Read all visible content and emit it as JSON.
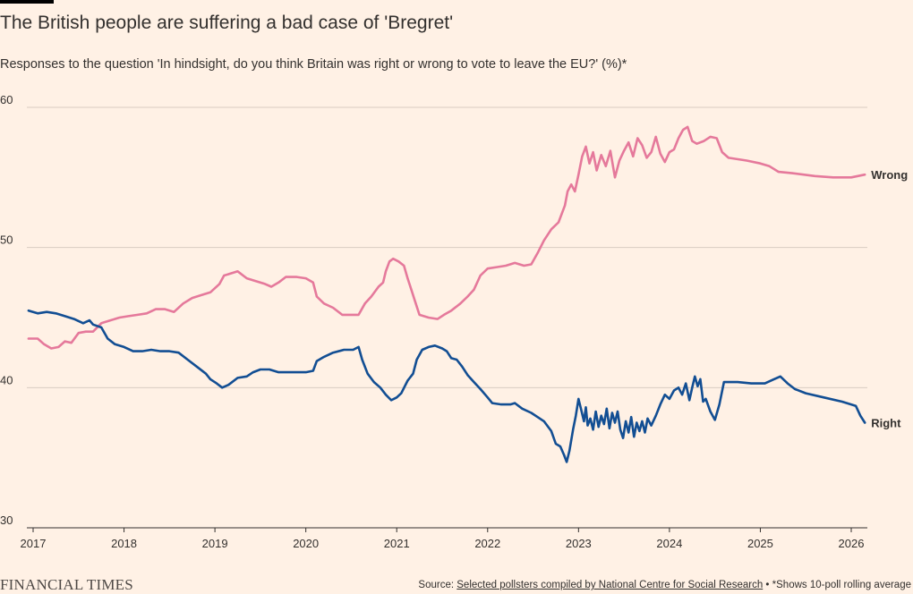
{
  "title": "The British people are suffering a bad case of 'Bregret'",
  "subtitle": "Responses to the question 'In hindsight, do you think Britain was right or wrong to vote to leave the EU?' (%)*",
  "footer": {
    "logo": "FINANCIAL TIMES",
    "source_prefix": "Source: ",
    "source_link": "Selected pollsters compiled by National Centre for Social Research",
    "source_suffix": " • *Shows 10-poll rolling average"
  },
  "colors": {
    "wrong": "#e5799b",
    "right": "#124e93",
    "grid": "#d9ccc1",
    "axis": "#33302e",
    "background": "#fff1e5"
  },
  "chart_data": {
    "type": "line",
    "title": "The British people are suffering a bad case of 'Bregret'",
    "subtitle": "Responses to the question 'In hindsight, do you think Britain was right or wrong to vote to leave the EU?' (%)*",
    "x_ticks": [
      "2017",
      "2018",
      "2019",
      "2020",
      "2021",
      "2022",
      "2023",
      "2024",
      "2025",
      "2026"
    ],
    "y_ticks": [
      "30",
      "40",
      "50",
      "60"
    ],
    "xlim": [
      2016.95,
      2026.15
    ],
    "ylim": [
      30,
      60
    ],
    "grid": true,
    "series": [
      {
        "name": "Wrong",
        "color": "#e5799b",
        "points": [
          [
            2016.95,
            43.5
          ],
          [
            2017.05,
            43.5
          ],
          [
            2017.12,
            43.1
          ],
          [
            2017.2,
            42.8
          ],
          [
            2017.28,
            42.9
          ],
          [
            2017.35,
            43.3
          ],
          [
            2017.42,
            43.2
          ],
          [
            2017.5,
            43.9
          ],
          [
            2017.58,
            44.0
          ],
          [
            2017.66,
            44.0
          ],
          [
            2017.75,
            44.6
          ],
          [
            2017.85,
            44.8
          ],
          [
            2017.95,
            45.0
          ],
          [
            2018.05,
            45.1
          ],
          [
            2018.15,
            45.2
          ],
          [
            2018.25,
            45.3
          ],
          [
            2018.35,
            45.6
          ],
          [
            2018.45,
            45.6
          ],
          [
            2018.55,
            45.4
          ],
          [
            2018.65,
            46.0
          ],
          [
            2018.75,
            46.4
          ],
          [
            2018.85,
            46.6
          ],
          [
            2018.95,
            46.8
          ],
          [
            2019.05,
            47.4
          ],
          [
            2019.1,
            48.0
          ],
          [
            2019.2,
            48.2
          ],
          [
            2019.25,
            48.3
          ],
          [
            2019.35,
            47.8
          ],
          [
            2019.45,
            47.6
          ],
          [
            2019.55,
            47.4
          ],
          [
            2019.62,
            47.2
          ],
          [
            2019.7,
            47.5
          ],
          [
            2019.78,
            47.9
          ],
          [
            2019.9,
            47.9
          ],
          [
            2020.0,
            47.8
          ],
          [
            2020.08,
            47.5
          ],
          [
            2020.12,
            46.5
          ],
          [
            2020.2,
            46.0
          ],
          [
            2020.3,
            45.7
          ],
          [
            2020.4,
            45.2
          ],
          [
            2020.5,
            45.2
          ],
          [
            2020.58,
            45.2
          ],
          [
            2020.65,
            46.0
          ],
          [
            2020.72,
            46.5
          ],
          [
            2020.8,
            47.2
          ],
          [
            2020.85,
            47.5
          ],
          [
            2020.88,
            48.3
          ],
          [
            2020.92,
            49.0
          ],
          [
            2020.96,
            49.2
          ],
          [
            2021.02,
            49.0
          ],
          [
            2021.08,
            48.7
          ],
          [
            2021.12,
            47.8
          ],
          [
            2021.16,
            47.0
          ],
          [
            2021.2,
            46.2
          ],
          [
            2021.25,
            45.2
          ],
          [
            2021.35,
            45.0
          ],
          [
            2021.45,
            44.9
          ],
          [
            2021.52,
            45.2
          ],
          [
            2021.6,
            45.5
          ],
          [
            2021.7,
            46.0
          ],
          [
            2021.78,
            46.5
          ],
          [
            2021.85,
            47.0
          ],
          [
            2021.92,
            48.0
          ],
          [
            2022.0,
            48.5
          ],
          [
            2022.1,
            48.6
          ],
          [
            2022.2,
            48.7
          ],
          [
            2022.3,
            48.9
          ],
          [
            2022.4,
            48.7
          ],
          [
            2022.48,
            48.8
          ],
          [
            2022.55,
            49.6
          ],
          [
            2022.62,
            50.5
          ],
          [
            2022.7,
            51.3
          ],
          [
            2022.78,
            51.8
          ],
          [
            2022.85,
            53.0
          ],
          [
            2022.88,
            54.0
          ],
          [
            2022.92,
            54.5
          ],
          [
            2022.96,
            54.0
          ],
          [
            2023.0,
            55.2
          ],
          [
            2023.04,
            56.5
          ],
          [
            2023.08,
            57.2
          ],
          [
            2023.12,
            56.0
          ],
          [
            2023.16,
            56.8
          ],
          [
            2023.2,
            55.5
          ],
          [
            2023.25,
            56.6
          ],
          [
            2023.3,
            55.8
          ],
          [
            2023.35,
            56.9
          ],
          [
            2023.4,
            55.0
          ],
          [
            2023.45,
            56.2
          ],
          [
            2023.5,
            56.9
          ],
          [
            2023.55,
            57.5
          ],
          [
            2023.6,
            56.5
          ],
          [
            2023.65,
            57.8
          ],
          [
            2023.7,
            57.3
          ],
          [
            2023.75,
            56.4
          ],
          [
            2023.8,
            56.8
          ],
          [
            2023.85,
            57.9
          ],
          [
            2023.9,
            56.7
          ],
          [
            2023.95,
            56.1
          ],
          [
            2024.0,
            56.8
          ],
          [
            2024.05,
            57.0
          ],
          [
            2024.1,
            57.8
          ],
          [
            2024.15,
            58.4
          ],
          [
            2024.2,
            58.6
          ],
          [
            2024.25,
            57.6
          ],
          [
            2024.3,
            57.4
          ],
          [
            2024.38,
            57.6
          ],
          [
            2024.45,
            57.9
          ],
          [
            2024.52,
            57.8
          ],
          [
            2024.58,
            56.8
          ],
          [
            2024.65,
            56.4
          ],
          [
            2024.85,
            56.2
          ],
          [
            2025.0,
            56.0
          ],
          [
            2025.1,
            55.8
          ],
          [
            2025.2,
            55.4
          ],
          [
            2025.35,
            55.3
          ],
          [
            2025.6,
            55.1
          ],
          [
            2025.8,
            55.0
          ],
          [
            2026.0,
            55.0
          ],
          [
            2026.15,
            55.2
          ]
        ]
      },
      {
        "name": "Right",
        "color": "#124e93",
        "points": [
          [
            2016.95,
            45.5
          ],
          [
            2017.05,
            45.3
          ],
          [
            2017.15,
            45.4
          ],
          [
            2017.25,
            45.3
          ],
          [
            2017.35,
            45.1
          ],
          [
            2017.45,
            44.9
          ],
          [
            2017.55,
            44.6
          ],
          [
            2017.62,
            44.8
          ],
          [
            2017.66,
            44.5
          ],
          [
            2017.75,
            44.3
          ],
          [
            2017.82,
            43.5
          ],
          [
            2017.9,
            43.1
          ],
          [
            2018.0,
            42.9
          ],
          [
            2018.1,
            42.6
          ],
          [
            2018.2,
            42.6
          ],
          [
            2018.3,
            42.7
          ],
          [
            2018.4,
            42.6
          ],
          [
            2018.5,
            42.6
          ],
          [
            2018.6,
            42.5
          ],
          [
            2018.7,
            42.0
          ],
          [
            2018.8,
            41.5
          ],
          [
            2018.9,
            41.0
          ],
          [
            2018.95,
            40.6
          ],
          [
            2019.02,
            40.3
          ],
          [
            2019.08,
            40.0
          ],
          [
            2019.15,
            40.2
          ],
          [
            2019.25,
            40.7
          ],
          [
            2019.35,
            40.8
          ],
          [
            2019.42,
            41.1
          ],
          [
            2019.5,
            41.3
          ],
          [
            2019.6,
            41.3
          ],
          [
            2019.7,
            41.1
          ],
          [
            2019.8,
            41.1
          ],
          [
            2020.0,
            41.1
          ],
          [
            2020.08,
            41.2
          ],
          [
            2020.12,
            41.9
          ],
          [
            2020.2,
            42.2
          ],
          [
            2020.3,
            42.5
          ],
          [
            2020.42,
            42.7
          ],
          [
            2020.52,
            42.7
          ],
          [
            2020.58,
            42.9
          ],
          [
            2020.62,
            42.0
          ],
          [
            2020.68,
            41.0
          ],
          [
            2020.75,
            40.4
          ],
          [
            2020.82,
            40.0
          ],
          [
            2020.88,
            39.5
          ],
          [
            2020.94,
            39.1
          ],
          [
            2021.0,
            39.3
          ],
          [
            2021.05,
            39.6
          ],
          [
            2021.12,
            40.5
          ],
          [
            2021.18,
            41.0
          ],
          [
            2021.22,
            42.0
          ],
          [
            2021.28,
            42.7
          ],
          [
            2021.35,
            42.9
          ],
          [
            2021.42,
            43.0
          ],
          [
            2021.5,
            42.8
          ],
          [
            2021.55,
            42.6
          ],
          [
            2021.6,
            42.1
          ],
          [
            2021.66,
            42.0
          ],
          [
            2021.72,
            41.5
          ],
          [
            2021.78,
            40.9
          ],
          [
            2021.85,
            40.4
          ],
          [
            2021.92,
            39.9
          ],
          [
            2022.0,
            39.3
          ],
          [
            2022.05,
            38.9
          ],
          [
            2022.15,
            38.8
          ],
          [
            2022.25,
            38.8
          ],
          [
            2022.3,
            38.9
          ],
          [
            2022.38,
            38.5
          ],
          [
            2022.48,
            38.2
          ],
          [
            2022.55,
            37.9
          ],
          [
            2022.62,
            37.6
          ],
          [
            2022.7,
            36.9
          ],
          [
            2022.75,
            36.0
          ],
          [
            2022.8,
            35.8
          ],
          [
            2022.84,
            35.2
          ],
          [
            2022.87,
            34.7
          ],
          [
            2022.9,
            35.5
          ],
          [
            2022.94,
            37.0
          ],
          [
            2022.97,
            38.0
          ],
          [
            2023.0,
            39.2
          ],
          [
            2023.03,
            38.4
          ],
          [
            2023.06,
            37.6
          ],
          [
            2023.08,
            38.6
          ],
          [
            2023.1,
            37.3
          ],
          [
            2023.13,
            37.8
          ],
          [
            2023.16,
            37.0
          ],
          [
            2023.19,
            38.3
          ],
          [
            2023.22,
            37.2
          ],
          [
            2023.25,
            38.0
          ],
          [
            2023.28,
            37.4
          ],
          [
            2023.31,
            38.5
          ],
          [
            2023.34,
            37.1
          ],
          [
            2023.37,
            38.2
          ],
          [
            2023.4,
            37.5
          ],
          [
            2023.43,
            38.3
          ],
          [
            2023.46,
            37.0
          ],
          [
            2023.49,
            36.4
          ],
          [
            2023.52,
            37.6
          ],
          [
            2023.55,
            36.8
          ],
          [
            2023.58,
            37.9
          ],
          [
            2023.61,
            36.5
          ],
          [
            2023.64,
            37.5
          ],
          [
            2023.67,
            36.9
          ],
          [
            2023.7,
            37.6
          ],
          [
            2023.73,
            36.8
          ],
          [
            2023.76,
            37.8
          ],
          [
            2023.8,
            37.3
          ],
          [
            2023.85,
            38.0
          ],
          [
            2023.9,
            38.8
          ],
          [
            2023.95,
            39.5
          ],
          [
            2024.0,
            39.2
          ],
          [
            2024.05,
            39.8
          ],
          [
            2024.1,
            40.0
          ],
          [
            2024.14,
            39.5
          ],
          [
            2024.18,
            40.3
          ],
          [
            2024.22,
            39.1
          ],
          [
            2024.25,
            40.0
          ],
          [
            2024.28,
            40.8
          ],
          [
            2024.31,
            40.1
          ],
          [
            2024.34,
            40.6
          ],
          [
            2024.37,
            39.0
          ],
          [
            2024.4,
            39.2
          ],
          [
            2024.45,
            38.3
          ],
          [
            2024.5,
            37.7
          ],
          [
            2024.55,
            38.8
          ],
          [
            2024.6,
            40.4
          ],
          [
            2024.75,
            40.4
          ],
          [
            2024.9,
            40.3
          ],
          [
            2025.05,
            40.3
          ],
          [
            2025.15,
            40.6
          ],
          [
            2025.22,
            40.8
          ],
          [
            2025.3,
            40.3
          ],
          [
            2025.38,
            39.9
          ],
          [
            2025.5,
            39.6
          ],
          [
            2025.7,
            39.3
          ],
          [
            2025.9,
            39.0
          ],
          [
            2026.05,
            38.7
          ],
          [
            2026.1,
            38.0
          ],
          [
            2026.15,
            37.5
          ]
        ]
      }
    ]
  }
}
